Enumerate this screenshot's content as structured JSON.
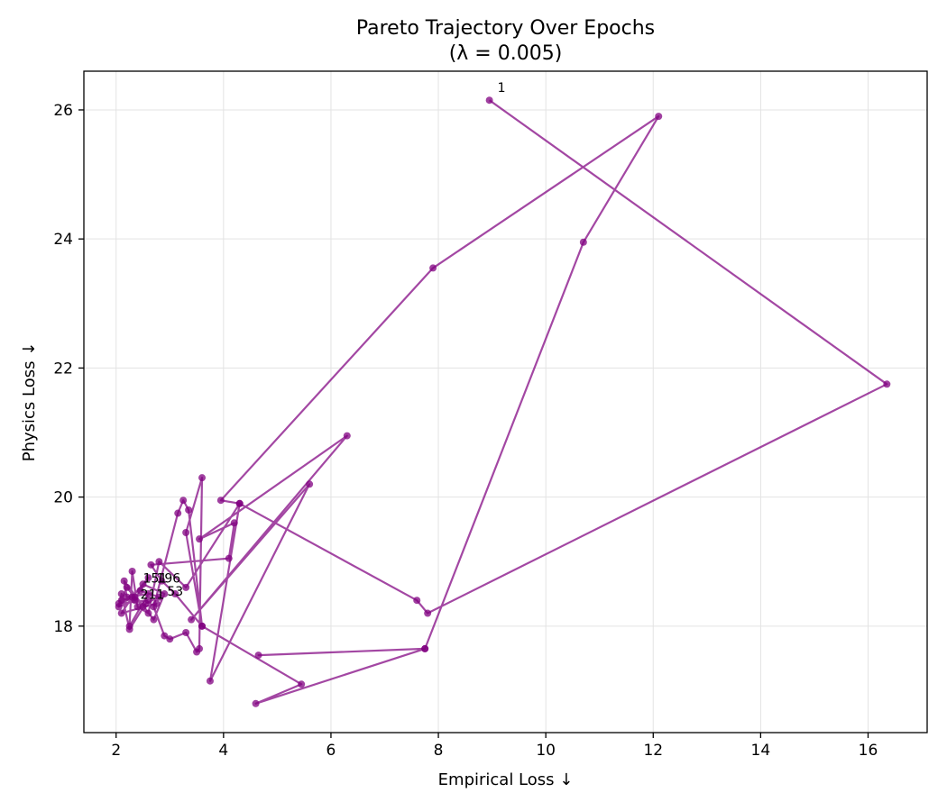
{
  "chart_data": {
    "type": "scatter",
    "title": "Pareto Trajectory Over Epochs",
    "subtitle": "(λ = 0.005)",
    "xlabel": "Empirical Loss ↓",
    "ylabel": "Physics Loss ↓",
    "xlim": [
      1.4,
      17.1
    ],
    "ylim": [
      16.35,
      26.6
    ],
    "xticks": [
      2,
      4,
      6,
      8,
      10,
      12,
      14,
      16
    ],
    "yticks": [
      18,
      20,
      22,
      24,
      26
    ],
    "grid": true,
    "color": "#800080",
    "series": [
      {
        "x": [
          8.95,
          16.35,
          7.8,
          7.6,
          4.3,
          3.95,
          7.9,
          12.1,
          10.7,
          7.75,
          4.65,
          7.75,
          4.6,
          5.45,
          3.6,
          3.3,
          3.6,
          3.55,
          3.5,
          3.3,
          3.0,
          2.9,
          2.7,
          3.15,
          3.25,
          3.35,
          3.6,
          3.1,
          2.85,
          2.65,
          4.1,
          4.2,
          3.55,
          6.3,
          3.4,
          5.6,
          3.75,
          4.3,
          3.3,
          2.8,
          2.6,
          2.4,
          2.3,
          2.25,
          2.6,
          2.2,
          2.15,
          2.7,
          2.9,
          2.5,
          2.35,
          2.05,
          2.1,
          2.25,
          2.55,
          2.8,
          2.45,
          2.6,
          2.3,
          2.1,
          2.75,
          2.5,
          2.2,
          2.1,
          2.35,
          2.05,
          2.6
        ],
        "y": [
          26.15,
          21.75,
          18.2,
          18.4,
          19.9,
          19.95,
          23.55,
          25.9,
          23.95,
          17.65,
          17.55,
          17.65,
          16.8,
          17.1,
          18.0,
          19.45,
          20.3,
          17.65,
          17.6,
          17.9,
          17.8,
          17.85,
          18.3,
          19.75,
          19.95,
          19.8,
          18.0,
          18.5,
          18.7,
          18.95,
          19.05,
          19.6,
          19.35,
          20.95,
          18.1,
          20.2,
          17.15,
          19.9,
          18.6,
          19.0,
          18.2,
          18.3,
          18.85,
          18.0,
          18.5,
          18.45,
          18.7,
          18.1,
          18.5,
          18.65,
          18.4,
          18.3,
          18.5,
          17.95,
          18.35,
          18.45,
          18.55,
          18.75,
          18.45,
          18.2,
          18.35,
          18.3,
          18.6,
          18.4,
          18.45,
          18.35,
          18.4
        ]
      }
    ],
    "annotations": [
      {
        "text": "1",
        "x": 8.95,
        "y": 26.15
      },
      {
        "text": "196",
        "x": 2.6,
        "y": 18.55
      },
      {
        "text": "151",
        "x": 2.35,
        "y": 18.55
      },
      {
        "text": "211",
        "x": 2.3,
        "y": 18.3
      },
      {
        "text": "53",
        "x": 2.8,
        "y": 18.35
      }
    ]
  }
}
